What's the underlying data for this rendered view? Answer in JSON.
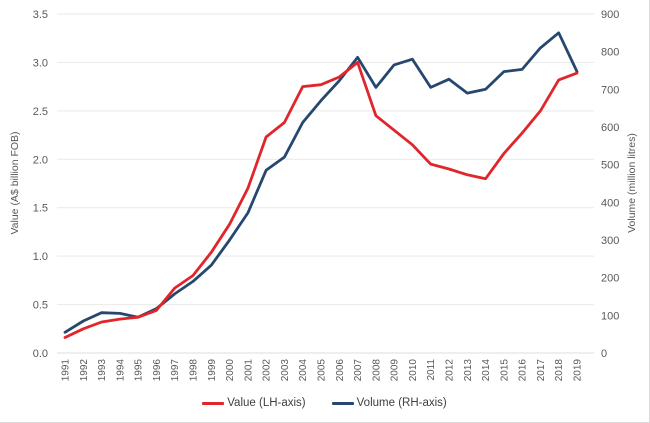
{
  "chart_data": {
    "type": "line",
    "title": "",
    "years": [
      "1991",
      "1992",
      "1993",
      "1994",
      "1995",
      "1996",
      "1997",
      "1998",
      "1999",
      "2000",
      "2001",
      "2002",
      "2003",
      "2004",
      "2005",
      "2006",
      "2007",
      "2008",
      "2009",
      "2010",
      "2011",
      "2012",
      "2013",
      "2014",
      "2015",
      "2016",
      "2017",
      "2018",
      "2019"
    ],
    "series": [
      {
        "name": "Value (LH-axis)",
        "axis": "left",
        "color": "#e0262b",
        "values": [
          0.16,
          0.25,
          0.32,
          0.35,
          0.37,
          0.44,
          0.67,
          0.8,
          1.04,
          1.33,
          1.7,
          2.23,
          2.38,
          2.75,
          2.77,
          2.85,
          3.0,
          2.45,
          2.3,
          2.15,
          1.95,
          1.9,
          1.84,
          1.8,
          2.06,
          2.27,
          2.5,
          2.82,
          2.89
        ]
      },
      {
        "name": "Volume (RH-axis)",
        "axis": "right",
        "color": "#26476e",
        "values": [
          55,
          85,
          107,
          105,
          95,
          118,
          157,
          190,
          233,
          300,
          372,
          485,
          520,
          612,
          670,
          723,
          785,
          705,
          765,
          780,
          705,
          727,
          690,
          700,
          747,
          753,
          810,
          850,
          747
        ]
      }
    ],
    "left_axis": {
      "title": "Value (A$ billion FOB)",
      "min": 0,
      "max": 3.5,
      "ticks": [
        "0.0",
        "0.5",
        "1.0",
        "1.5",
        "2.0",
        "2.5",
        "3.0",
        "3.5"
      ]
    },
    "right_axis": {
      "title": "Volume (million litres)",
      "min": 0,
      "max": 900,
      "ticks": [
        "0",
        "100",
        "200",
        "300",
        "400",
        "500",
        "600",
        "700",
        "800",
        "900"
      ]
    },
    "grid": "horizontal",
    "legend_position": "bottom",
    "colors": {
      "gridline": "#e9e9e9",
      "baseline": "#dedede",
      "tick_label": "#595959",
      "axis_title": "#595959",
      "legend_text": "#404040"
    }
  },
  "legend": {
    "items": [
      {
        "label": "Value (LH-axis)",
        "color": "#e0262b"
      },
      {
        "label": "Volume (RH-axis)",
        "color": "#26476e"
      }
    ]
  }
}
